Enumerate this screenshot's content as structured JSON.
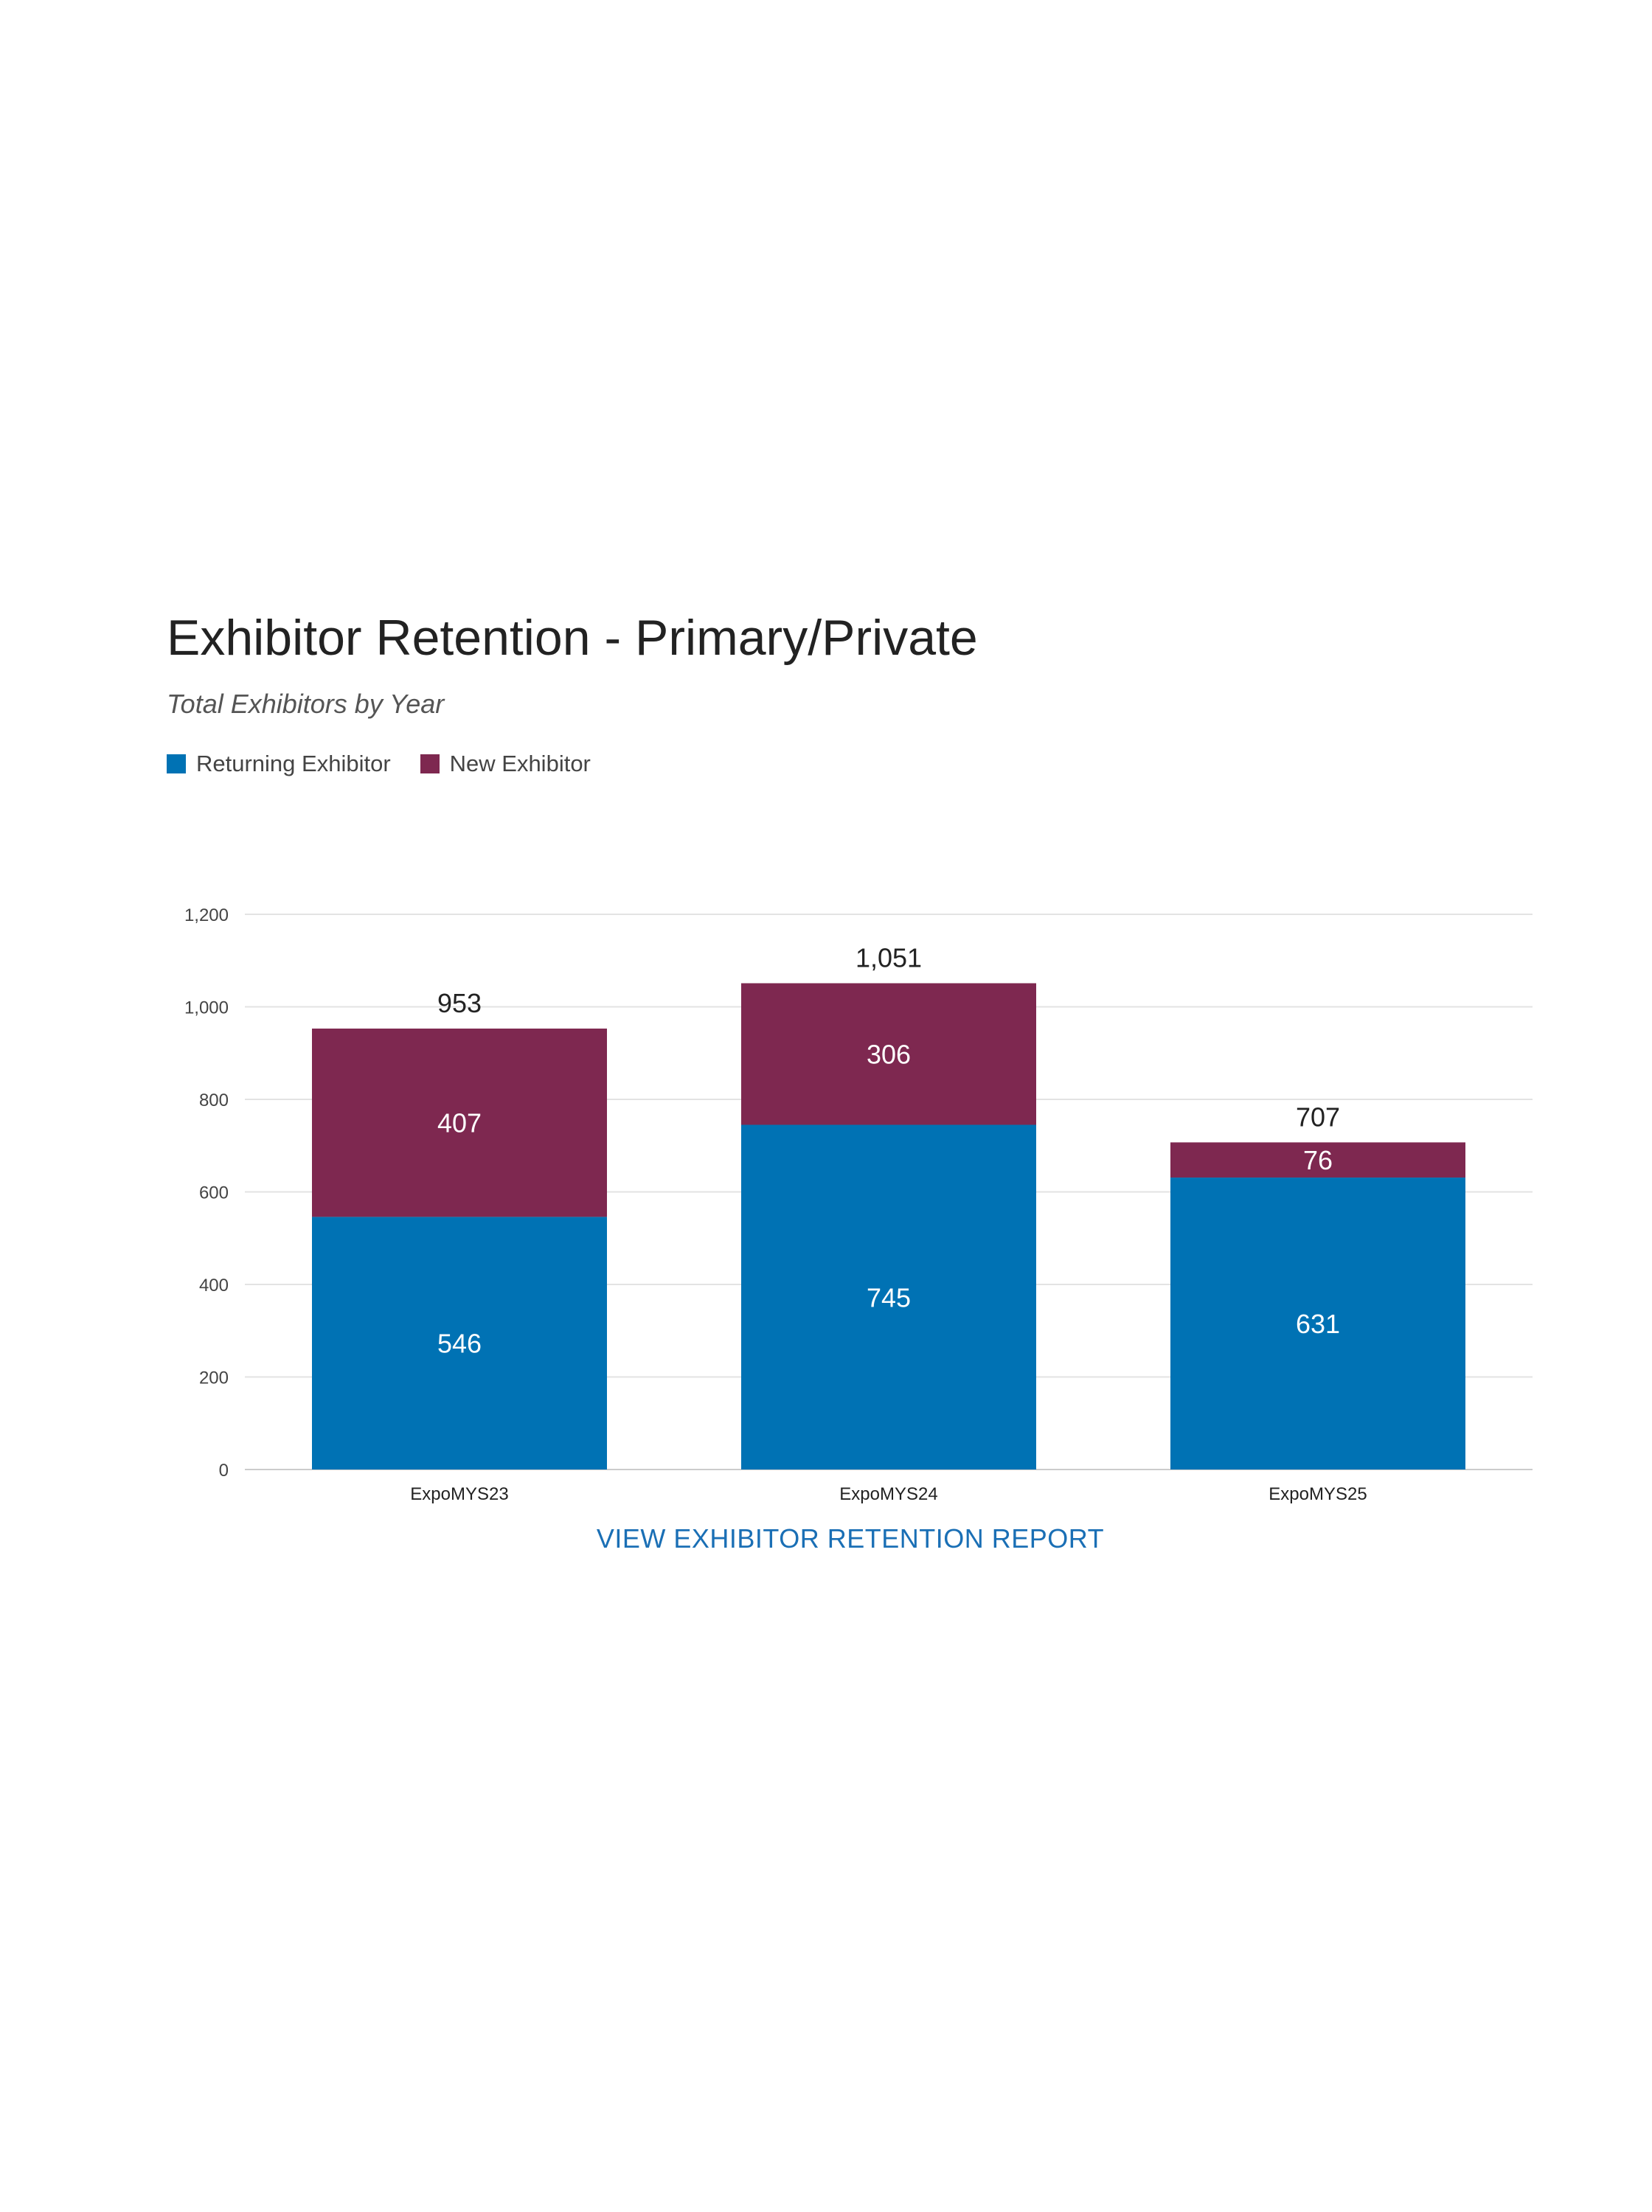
{
  "chart_data": {
    "type": "bar",
    "stacked": true,
    "title": "Exhibitor Retention - Primary/Private",
    "subtitle": "Total Exhibitors by Year",
    "xlabel": "",
    "ylabel": "",
    "categories": [
      "ExpoMYS23",
      "ExpoMYS24",
      "ExpoMYS25"
    ],
    "series": [
      {
        "name": "Returning Exhibitor",
        "color": "#0072b4",
        "values": [
          546,
          745,
          631
        ]
      },
      {
        "name": "New Exhibitor",
        "color": "#7e2850",
        "values": [
          407,
          306,
          76
        ]
      }
    ],
    "totals": [
      953,
      1051,
      707
    ],
    "total_labels": [
      "953",
      "1,051",
      "707"
    ],
    "ylim": [
      0,
      1200
    ],
    "yticks": [
      0,
      200,
      400,
      600,
      800,
      1000,
      1200
    ],
    "ytick_labels": [
      "0",
      "200",
      "400",
      "600",
      "800",
      "1,000",
      "1,200"
    ],
    "grid": true,
    "legend_position": "top-left"
  },
  "link": {
    "label": "VIEW EXHIBITOR RETENTION REPORT",
    "color": "#1a6fb5"
  }
}
